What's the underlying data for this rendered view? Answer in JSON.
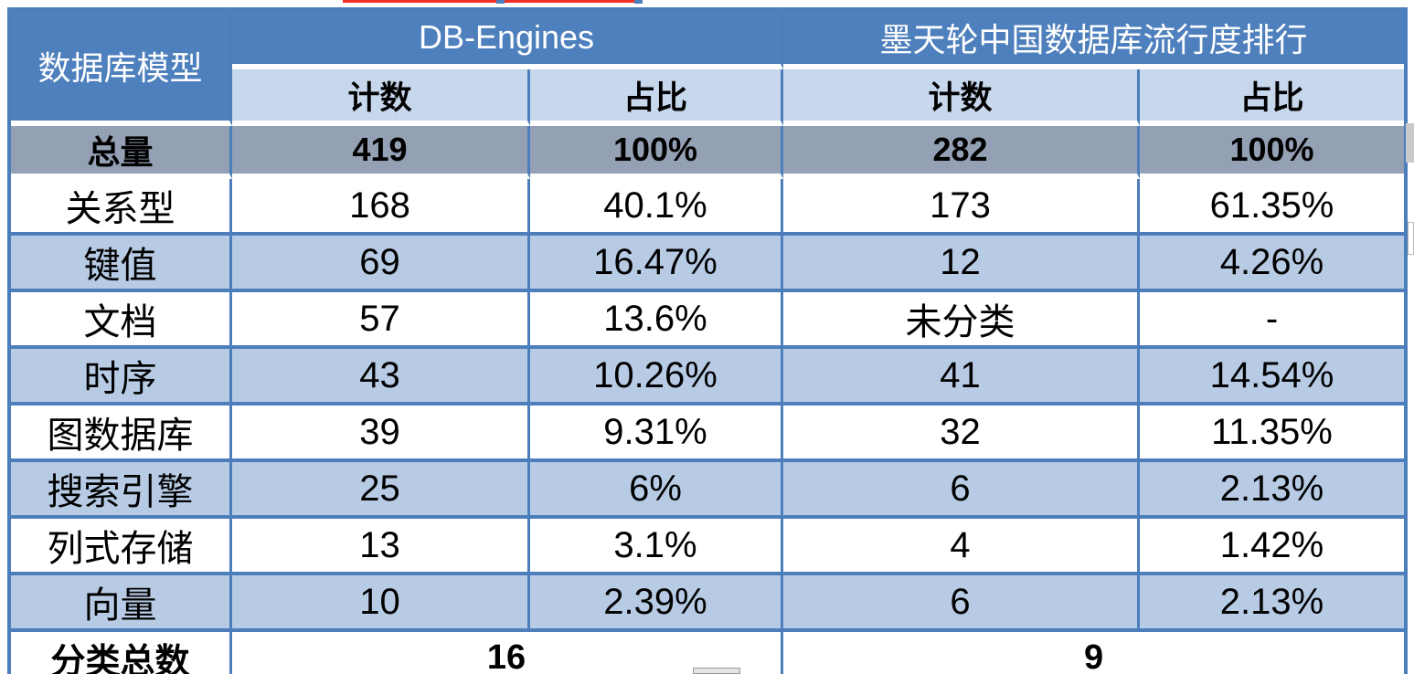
{
  "chart_data": {
    "type": "table",
    "title": "",
    "column_groups": [
      "DB-Engines",
      "墨天轮中国数据库流行度排行"
    ],
    "columns": [
      "数据库模型",
      "计数",
      "占比",
      "计数",
      "占比"
    ],
    "rows": [
      [
        "总量",
        "419",
        "100%",
        "282",
        "100%"
      ],
      [
        "关系型",
        "168",
        "40.1%",
        "173",
        "61.35%"
      ],
      [
        "键值",
        "69",
        "16.47%",
        "12",
        "4.26%"
      ],
      [
        "文档",
        "57",
        "13.6%",
        "未分类",
        "-"
      ],
      [
        "时序",
        "43",
        "10.26%",
        "41",
        "14.54%"
      ],
      [
        "图数据库",
        "39",
        "9.31%",
        "32",
        "11.35%"
      ],
      [
        "搜索引擎",
        "25",
        "6%",
        "6",
        "2.13%"
      ],
      [
        "列式存储",
        "13",
        "3.1%",
        "4",
        "1.42%"
      ],
      [
        "向量",
        "10",
        "2.39%",
        "6",
        "2.13%"
      ]
    ],
    "footer": [
      "分类总数",
      "16",
      "9"
    ]
  },
  "colors": {
    "header_blue": "#4e80bd",
    "border_blue": "#4d7ebc",
    "subheader_blue": "#c7d7ec",
    "band_blue": "#b7cbe5",
    "total_gray": "#94a0b4",
    "artifact_red": "#ee3124",
    "scrollbar_gray": "#c9c9c9"
  }
}
